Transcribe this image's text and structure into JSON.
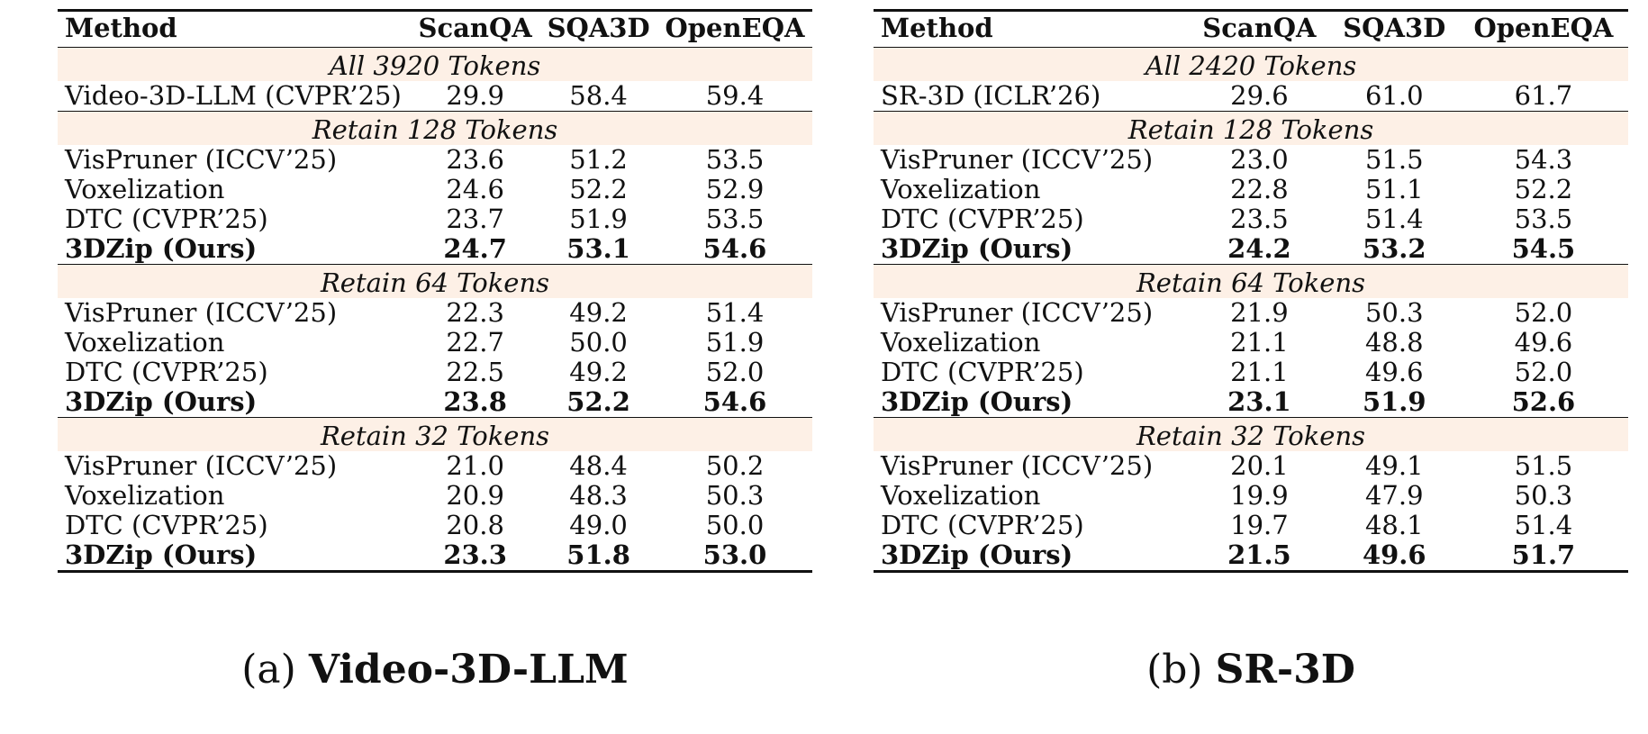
{
  "tables": [
    {
      "headers": [
        "Method",
        "ScanQA",
        "SQA3D",
        "OpenEQA"
      ],
      "caption_prefix": "(a)",
      "caption_title": "Video-3D-LLM",
      "groups": [
        {
          "label": "All 3920 Tokens",
          "rows": [
            {
              "method": "Video-3D-LLM (CVPR’25)",
              "v": [
                "29.9",
                "58.4",
                "59.4"
              ]
            }
          ]
        },
        {
          "label": "Retain 128 Tokens",
          "rows": [
            {
              "method": "VisPruner (ICCV’25)",
              "v": [
                "23.6",
                "51.2",
                "53.5"
              ]
            },
            {
              "method": "Voxelization",
              "v": [
                "24.6",
                "52.2",
                "52.9"
              ]
            },
            {
              "method": "DTC (CVPR’25)",
              "v": [
                "23.7",
                "51.9",
                "53.5"
              ]
            },
            {
              "method": "3DZip (Ours)",
              "v": [
                "24.7",
                "53.1",
                "54.6"
              ]
            }
          ]
        },
        {
          "label": "Retain 64 Tokens",
          "rows": [
            {
              "method": "VisPruner (ICCV’25)",
              "v": [
                "22.3",
                "49.2",
                "51.4"
              ]
            },
            {
              "method": "Voxelization",
              "v": [
                "22.7",
                "50.0",
                "51.9"
              ]
            },
            {
              "method": "DTC (CVPR’25)",
              "v": [
                "22.5",
                "49.2",
                "52.0"
              ]
            },
            {
              "method": "3DZip (Ours)",
              "v": [
                "23.8",
                "52.2",
                "54.6"
              ]
            }
          ]
        },
        {
          "label": "Retain 32 Tokens",
          "rows": [
            {
              "method": "VisPruner (ICCV’25)",
              "v": [
                "21.0",
                "48.4",
                "50.2"
              ]
            },
            {
              "method": "Voxelization",
              "v": [
                "20.9",
                "48.3",
                "50.3"
              ]
            },
            {
              "method": "DTC (CVPR’25)",
              "v": [
                "20.8",
                "49.0",
                "50.0"
              ]
            },
            {
              "method": "3DZip (Ours)",
              "v": [
                "23.3",
                "51.8",
                "53.0"
              ]
            }
          ]
        }
      ]
    },
    {
      "headers": [
        "Method",
        "ScanQA",
        "SQA3D",
        "OpenEQA"
      ],
      "caption_prefix": "(b)",
      "caption_title": "SR-3D",
      "groups": [
        {
          "label": "All 2420 Tokens",
          "rows": [
            {
              "method": "SR-3D (ICLR’26)",
              "v": [
                "29.6",
                "61.0",
                "61.7"
              ]
            }
          ]
        },
        {
          "label": "Retain 128 Tokens",
          "rows": [
            {
              "method": "VisPruner (ICCV’25)",
              "v": [
                "23.0",
                "51.5",
                "54.3"
              ]
            },
            {
              "method": "Voxelization",
              "v": [
                "22.8",
                "51.1",
                "52.2"
              ]
            },
            {
              "method": "DTC (CVPR’25)",
              "v": [
                "23.5",
                "51.4",
                "53.5"
              ]
            },
            {
              "method": "3DZip (Ours)",
              "v": [
                "24.2",
                "53.2",
                "54.5"
              ]
            }
          ]
        },
        {
          "label": "Retain 64 Tokens",
          "rows": [
            {
              "method": "VisPruner (ICCV’25)",
              "v": [
                "21.9",
                "50.3",
                "52.0"
              ]
            },
            {
              "method": "Voxelization",
              "v": [
                "21.1",
                "48.8",
                "49.6"
              ]
            },
            {
              "method": "DTC (CVPR’25)",
              "v": [
                "21.1",
                "49.6",
                "52.0"
              ]
            },
            {
              "method": "3DZip (Ours)",
              "v": [
                "23.1",
                "51.9",
                "52.6"
              ]
            }
          ]
        },
        {
          "label": "Retain 32 Tokens",
          "rows": [
            {
              "method": "VisPruner (ICCV’25)",
              "v": [
                "20.1",
                "49.1",
                "51.5"
              ]
            },
            {
              "method": "Voxelization",
              "v": [
                "19.9",
                "47.9",
                "50.3"
              ]
            },
            {
              "method": "DTC (CVPR’25)",
              "v": [
                "19.7",
                "48.1",
                "51.4"
              ]
            },
            {
              "method": "3DZip (Ours)",
              "v": [
                "21.5",
                "49.6",
                "51.7"
              ]
            }
          ]
        }
      ]
    }
  ]
}
